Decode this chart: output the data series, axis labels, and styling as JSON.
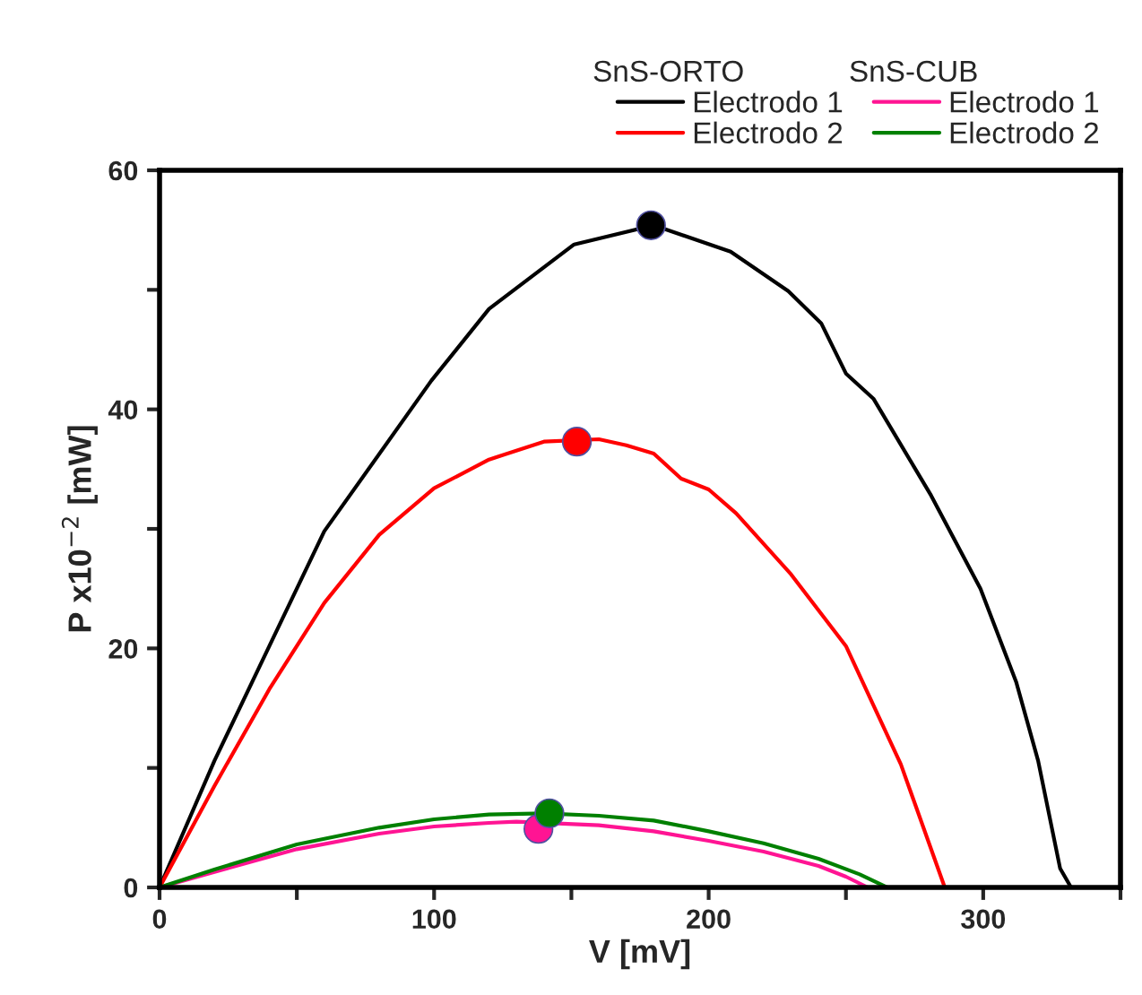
{
  "chart_data": {
    "type": "line",
    "xlabel": "V [mV]",
    "ylabel": "P x10$^{−2}$ [mW]",
    "annotations": [
      "SnS-ORTO",
      "SnS-CUB"
    ],
    "xlim": [
      0,
      350
    ],
    "ylim": [
      0,
      60
    ],
    "xticks": [
      0,
      {
        "value": 50,
        "label": null
      },
      100,
      {
        "value": 150,
        "label": null
      },
      200,
      {
        "value": 250,
        "label": null
      },
      300,
      {
        "value": 350,
        "label": null
      }
    ],
    "yticks": [
      0,
      {
        "value": 10,
        "label": null
      },
      20,
      {
        "value": 30,
        "label": null
      },
      40,
      {
        "value": 50,
        "label": null
      },
      60
    ],
    "grid": false,
    "legend": "top right",
    "line_style": "solid",
    "series": [
      {
        "name": "Electrodo 1",
        "color": "#000000",
        "x": [
          0,
          20,
          40,
          60,
          99,
          120,
          151,
          180,
          208,
          229,
          241,
          250,
          260,
          281,
          299,
          312,
          320,
          328,
          332
        ],
        "values": [
          0,
          10.6,
          20.2,
          29.8,
          42.4,
          48.4,
          53.8,
          55.4,
          53.2,
          49.9,
          47.2,
          43,
          40.9,
          32.8,
          25,
          17.2,
          10.6,
          1.6,
          0
        ]
      },
      {
        "name": "Electrodo 2",
        "color": "#ff0000",
        "x": [
          0,
          20,
          40,
          60,
          80,
          100,
          120,
          140,
          160,
          170,
          180,
          190,
          200,
          210,
          230,
          250,
          270,
          286
        ],
        "values": [
          0,
          8.5,
          16.6,
          23.8,
          29.5,
          33.4,
          35.8,
          37.3,
          37.5,
          37,
          36.3,
          34.2,
          33.3,
          31.3,
          26.2,
          20.2,
          10.3,
          0
        ]
      },
      {
        "name": "Electrodo 1",
        "color": "#ff1493",
        "x": [
          0,
          20,
          50,
          80,
          100,
          120,
          130,
          160,
          180,
          200,
          220,
          240,
          250,
          258
        ],
        "values": [
          0,
          1.3,
          3.2,
          4.5,
          5.1,
          5.4,
          5.5,
          5.2,
          4.7,
          3.9,
          3.0,
          1.8,
          0.9,
          0
        ]
      },
      {
        "name": "Electrodo 2",
        "color": "#008000",
        "x": [
          0,
          20,
          50,
          80,
          100,
          120,
          140,
          160,
          180,
          200,
          220,
          240,
          255,
          265
        ],
        "values": [
          0,
          1.5,
          3.6,
          5.0,
          5.7,
          6.1,
          6.2,
          6.0,
          5.6,
          4.7,
          3.7,
          2.4,
          1.1,
          0
        ]
      },
      {
        "color": "#000000",
        "type": "scatter",
        "marker": "circle",
        "x": [
          179
        ],
        "values": [
          55.4
        ]
      },
      {
        "color": "#ff0000",
        "type": "scatter",
        "marker": "circle",
        "x": [
          152
        ],
        "values": [
          37.3
        ]
      },
      {
        "color": "#ff1493",
        "type": "scatter",
        "marker": "circle",
        "x": [
          138
        ],
        "values": [
          4.9
        ]
      },
      {
        "color": "#008000",
        "type": "scatter",
        "marker": "circle",
        "x": [
          142
        ],
        "values": [
          6.2
        ]
      }
    ]
  }
}
